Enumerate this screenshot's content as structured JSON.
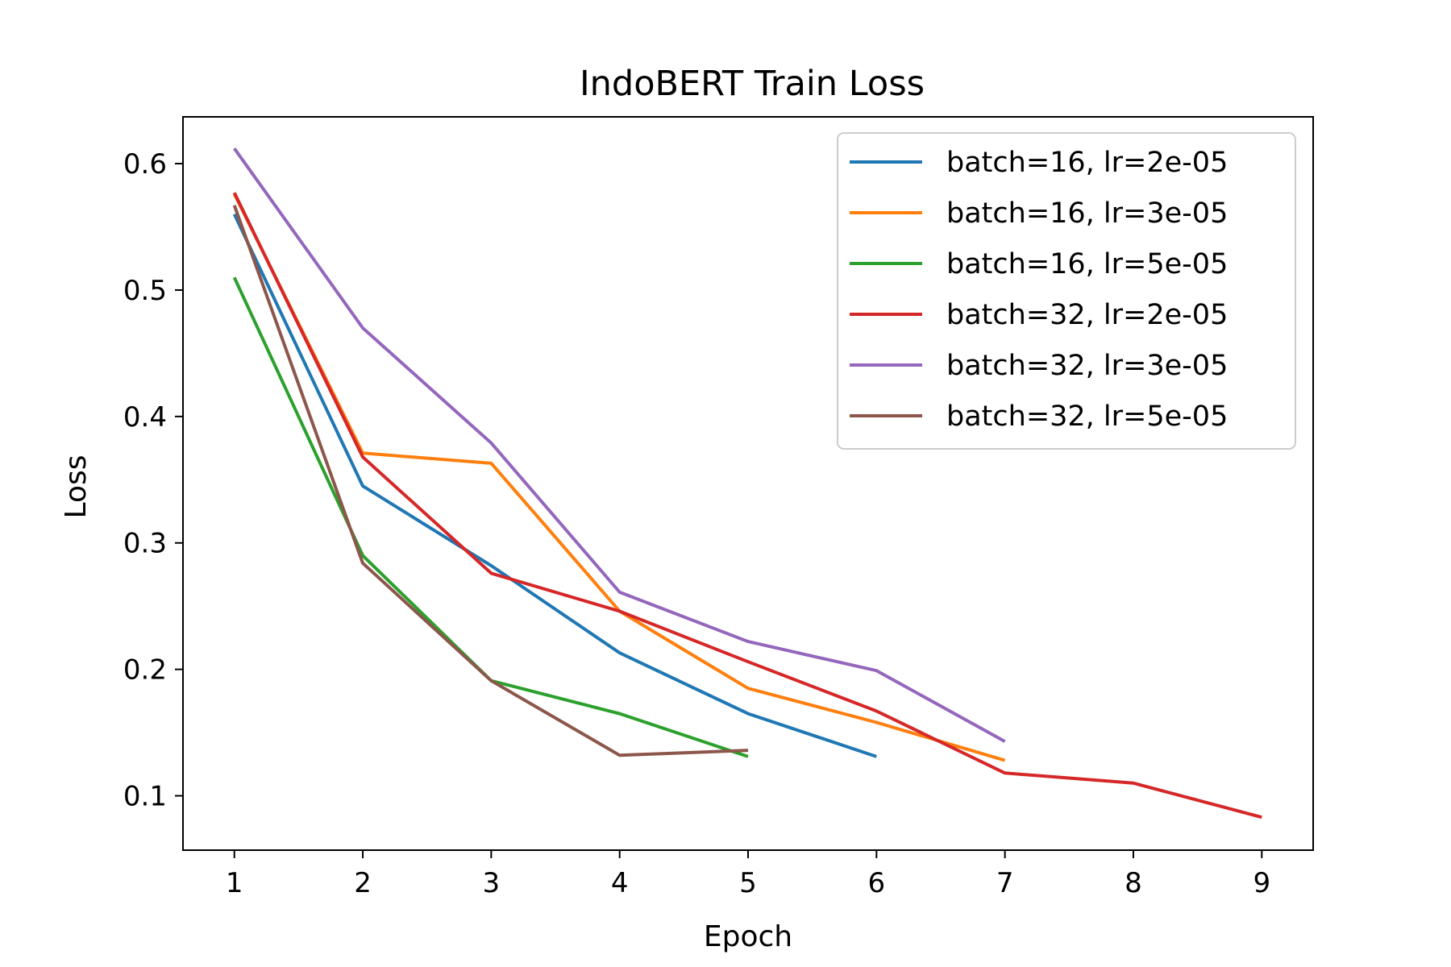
{
  "chart_data": {
    "type": "line",
    "title": "IndoBERT Train Loss",
    "xlabel": "Epoch",
    "ylabel": "Loss",
    "xlim": [
      0.6,
      9.4
    ],
    "ylim": [
      0.057,
      0.637
    ],
    "x_ticks": [
      "1",
      "2",
      "3",
      "4",
      "5",
      "6",
      "7",
      "8",
      "9"
    ],
    "y_ticks": [
      "0.1",
      "0.2",
      "0.3",
      "0.4",
      "0.5",
      "0.6"
    ],
    "grid": false,
    "legend_position": "top-right",
    "series": [
      {
        "name": "batch=16, lr=2e-05",
        "color": "#1f77b4",
        "x": [
          1,
          2,
          3,
          4,
          5,
          6
        ],
        "values": [
          0.56,
          0.345,
          0.282,
          0.213,
          0.165,
          0.131
        ]
      },
      {
        "name": "batch=16, lr=3e-05",
        "color": "#ff7f0e",
        "x": [
          1,
          2,
          3,
          4,
          5,
          6,
          7
        ],
        "values": [
          0.576,
          0.371,
          0.363,
          0.246,
          0.185,
          0.158,
          0.128
        ]
      },
      {
        "name": "batch=16, lr=5e-05",
        "color": "#2ca02c",
        "x": [
          1,
          2,
          3,
          4,
          5
        ],
        "values": [
          0.51,
          0.29,
          0.191,
          0.165,
          0.131
        ]
      },
      {
        "name": "batch=32, lr=2e-05",
        "color": "#d62728",
        "x": [
          1,
          2,
          3,
          4,
          5,
          6,
          7,
          8,
          9
        ],
        "values": [
          0.577,
          0.368,
          0.276,
          0.246,
          0.206,
          0.167,
          0.118,
          0.11,
          0.083
        ]
      },
      {
        "name": "batch=32, lr=3e-05",
        "color": "#9467bd",
        "x": [
          1,
          2,
          3,
          4,
          5,
          6,
          7
        ],
        "values": [
          0.612,
          0.47,
          0.379,
          0.261,
          0.222,
          0.199,
          0.143
        ]
      },
      {
        "name": "batch=32, lr=5e-05",
        "color": "#8c564b",
        "x": [
          1,
          2,
          3,
          4,
          5
        ],
        "values": [
          0.567,
          0.284,
          0.191,
          0.132,
          0.136
        ]
      }
    ]
  }
}
